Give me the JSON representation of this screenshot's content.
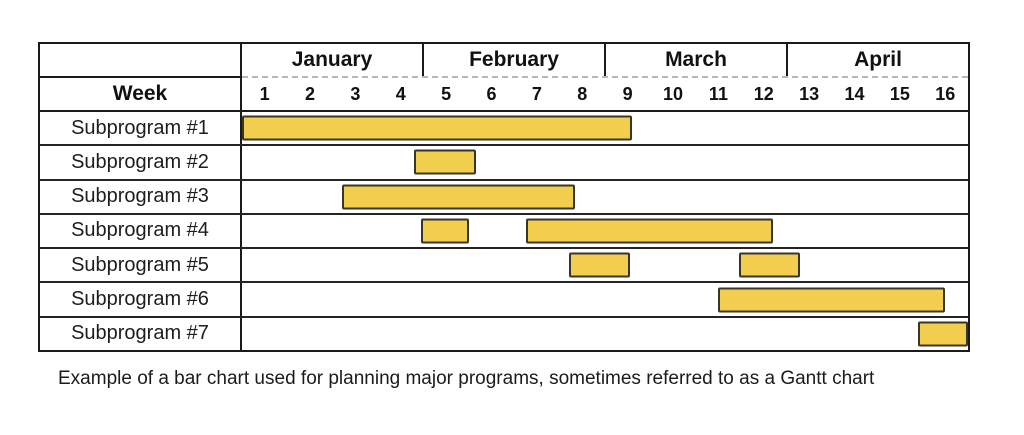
{
  "figure": {
    "week_axis_label": "Week"
  },
  "caption": "Example of a bar chart used for planning major programs, sometimes referred to as a Gantt chart",
  "colors": {
    "bar_fill": "#F1CE4E",
    "bar_border": "#3A3627",
    "table_border": "#1A1A1A",
    "month_rule_dashed": "#B8B8B8",
    "text": "#111111"
  },
  "chart_data": {
    "type": "bar",
    "subtype": "gantt",
    "orientation": "horizontal",
    "title": "",
    "caption": "Example of a bar chart used for planning major programs, sometimes referred to as a Gantt chart",
    "months": [
      "January",
      "February",
      "March",
      "April"
    ],
    "weeks": [
      "1",
      "2",
      "3",
      "4",
      "5",
      "6",
      "7",
      "8",
      "9",
      "10",
      "11",
      "12",
      "13",
      "14",
      "15",
      "16"
    ],
    "week_axis_label": "Week",
    "axis": {
      "unit": "weeks",
      "min": 0,
      "max": 16,
      "weeks_per_month": 4,
      "note": "bar start/end are offsets in weeks from the left edge of week 1 (0 = start of week 1, 16 = end of week 16)"
    },
    "tasks": [
      {
        "label": "Subprogram #1",
        "bars": [
          {
            "start": 0,
            "end": 8.6
          }
        ]
      },
      {
        "label": "Subprogram #2",
        "bars": [
          {
            "start": 3.8,
            "end": 5.15
          }
        ]
      },
      {
        "label": "Subprogram #3",
        "bars": [
          {
            "start": 2.2,
            "end": 7.35
          }
        ]
      },
      {
        "label": "Subprogram #4",
        "bars": [
          {
            "start": 3.95,
            "end": 5.0
          },
          {
            "start": 6.25,
            "end": 11.7
          }
        ]
      },
      {
        "label": "Subprogram #5",
        "bars": [
          {
            "start": 7.2,
            "end": 8.55
          },
          {
            "start": 10.95,
            "end": 12.3
          }
        ]
      },
      {
        "label": "Subprogram #6",
        "bars": [
          {
            "start": 10.5,
            "end": 15.5
          }
        ]
      },
      {
        "label": "Subprogram #7",
        "bars": [
          {
            "start": 14.9,
            "end": 16
          }
        ]
      }
    ]
  }
}
